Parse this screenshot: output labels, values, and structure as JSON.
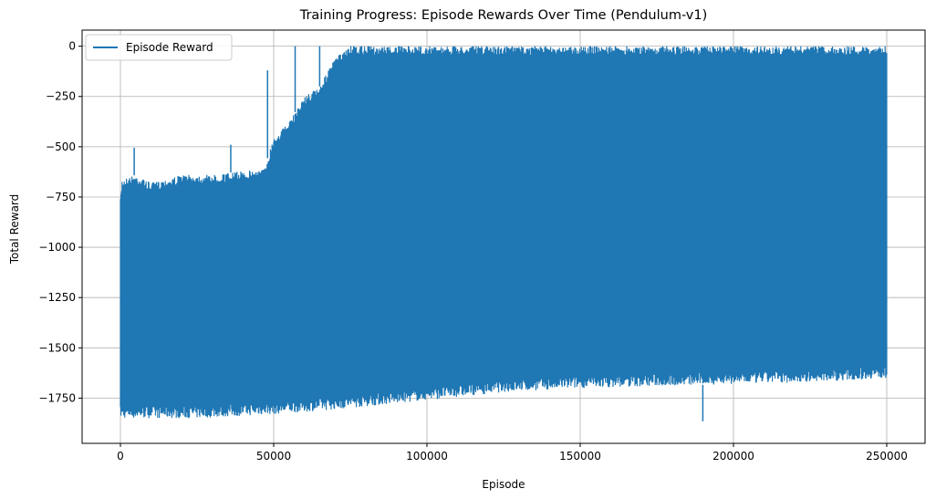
{
  "chart_data": {
    "type": "line",
    "title": "Training Progress: Episode Rewards Over Time (Pendulum-v1)",
    "xlabel": "Episode",
    "ylabel": "Total Reward",
    "xlim": [
      -12500,
      262500
    ],
    "ylim": [
      -1975,
      80
    ],
    "xticks": [
      0,
      50000,
      100000,
      150000,
      200000,
      250000
    ],
    "xtick_labels": [
      "0",
      "50000",
      "100000",
      "150000",
      "200000",
      "250000"
    ],
    "yticks": [
      0,
      -250,
      -500,
      -750,
      -1000,
      -1250,
      -1500,
      -1750
    ],
    "ytick_labels": [
      "0",
      "−250",
      "−500",
      "−750",
      "−1000",
      "−1250",
      "−1500",
      "−1750"
    ],
    "grid": true,
    "legend": {
      "position": "top-left"
    },
    "series": [
      {
        "name": "Episode Reward",
        "color": "#1f77b4",
        "episode_range": [
          0,
          250000
        ],
        "upper_envelope": [
          {
            "x": 0,
            "y": -760
          },
          {
            "x": 500,
            "y": -660
          },
          {
            "x": 5000,
            "y": -640
          },
          {
            "x": 10000,
            "y": -680
          },
          {
            "x": 20000,
            "y": -640
          },
          {
            "x": 30000,
            "y": -640
          },
          {
            "x": 40000,
            "y": -620
          },
          {
            "x": 47000,
            "y": -610
          },
          {
            "x": 50000,
            "y": -450
          },
          {
            "x": 55000,
            "y": -380
          },
          {
            "x": 60000,
            "y": -250
          },
          {
            "x": 65000,
            "y": -200
          },
          {
            "x": 70000,
            "y": -60
          },
          {
            "x": 75000,
            "y": 0
          },
          {
            "x": 250000,
            "y": 0
          }
        ],
        "lower_envelope": [
          {
            "x": 0,
            "y": -1850
          },
          {
            "x": 25000,
            "y": -1850
          },
          {
            "x": 50000,
            "y": -1830
          },
          {
            "x": 75000,
            "y": -1800
          },
          {
            "x": 100000,
            "y": -1760
          },
          {
            "x": 125000,
            "y": -1720
          },
          {
            "x": 150000,
            "y": -1700
          },
          {
            "x": 175000,
            "y": -1690
          },
          {
            "x": 200000,
            "y": -1680
          },
          {
            "x": 225000,
            "y": -1670
          },
          {
            "x": 250000,
            "y": -1650
          }
        ],
        "notable_spikes": [
          {
            "x": 4500,
            "y": -505
          },
          {
            "x": 36000,
            "y": -490
          },
          {
            "x": 48000,
            "y": -120
          },
          {
            "x": 57000,
            "y": 0
          },
          {
            "x": 65000,
            "y": 0
          },
          {
            "x": 190000,
            "y": -1865
          }
        ]
      }
    ]
  }
}
